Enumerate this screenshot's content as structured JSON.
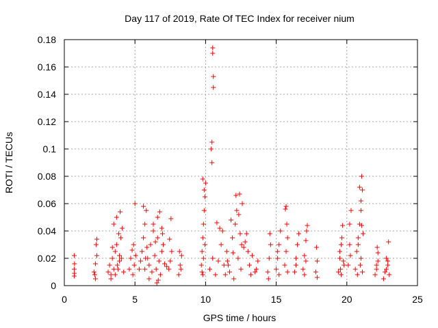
{
  "chart_data": {
    "type": "scatter",
    "title": "Day 117 of 2019, Rate Of TEC Index for receiver nium",
    "xlabel": "GPS time / hours",
    "ylabel": "ROTI / TECUs",
    "xlim": [
      0,
      25
    ],
    "ylim": [
      0,
      0.18
    ],
    "xticks": [
      0,
      5,
      10,
      15,
      20,
      25
    ],
    "xtick_labels": [
      "0",
      "5",
      "10",
      "15",
      "20",
      "25"
    ],
    "yticks": [
      0,
      0.02,
      0.04,
      0.06,
      0.08,
      0.1,
      0.12,
      0.14,
      0.16,
      0.18
    ],
    "ytick_labels": [
      "0",
      "0.02",
      "0.04",
      "0.06",
      "0.08",
      "0.1",
      "0.12",
      "0.14",
      "0.16",
      "0.18"
    ],
    "grid": true,
    "marker": "+",
    "marker_color": "#ff0000",
    "series": [
      {
        "name": "ROTI",
        "x": [
          0.7,
          0.7,
          0.72,
          0.7,
          0.71,
          2.1,
          2.2,
          2.3,
          2.25,
          2.15,
          2.3,
          2.2,
          3.1,
          3.2,
          3.3,
          3.4,
          3.5,
          3.6,
          3.7,
          3.5,
          3.8,
          3.9,
          4.0,
          4.1,
          3.6,
          3.7,
          3.9,
          4.2,
          3.95,
          3.85,
          3.75,
          4.05,
          3.3,
          3.4,
          4.6,
          4.7,
          4.8,
          4.9,
          5.0,
          4.95,
          4.85,
          5.05,
          5.3,
          5.4,
          5.5,
          5.6,
          5.7,
          5.8,
          5.9,
          6.0,
          6.1,
          6.2,
          6.3,
          6.4,
          6.5,
          6.6,
          6.7,
          6.8,
          6.9,
          7.0,
          7.1,
          5.6,
          5.7,
          6.0,
          6.3,
          6.6,
          6.9,
          6.65,
          6.55,
          6.75,
          5.75,
          5.85,
          6.45,
          6.95,
          7.25,
          7.4,
          7.5,
          7.6,
          7.45,
          7.55,
          8.1,
          8.2,
          8.3,
          8.15,
          8.25,
          9.7,
          9.75,
          9.8,
          9.85,
          9.9,
          9.95,
          10.0,
          9.8,
          9.9,
          9.75,
          9.85,
          9.95,
          9.8,
          10.5,
          10.5,
          10.55,
          10.55,
          10.45,
          10.4,
          10.45,
          10.3,
          10.5,
          10.7,
          10.9,
          11.1,
          11.3,
          11.5,
          11.7,
          11.9,
          12.1,
          12.3,
          12.5,
          12.7,
          12.9,
          13.1,
          13.3,
          13.5,
          13.7,
          11.2,
          11.8,
          12.2,
          12.6,
          12.0,
          11.4,
          11.6,
          12.4,
          12.8,
          13.0,
          11.0,
          10.8,
          12.15,
          12.35,
          12.55,
          11.95,
          12.45,
          11.55,
          13.2,
          13.6,
          14.4,
          14.5,
          14.6,
          14.55,
          14.45,
          15.0,
          15.1,
          15.2,
          15.3,
          15.2,
          15.1,
          15.6,
          15.7,
          15.8,
          15.75,
          15.65,
          15.7,
          15.8,
          16.3,
          16.4,
          16.5,
          16.6,
          16.4,
          16.9,
          17.0,
          17.1,
          17.2,
          17.0,
          17.1,
          17.15,
          17.8,
          17.9,
          17.85,
          17.9,
          19.4,
          19.5,
          19.6,
          19.7,
          19.8,
          19.5,
          19.6,
          19.55,
          19.65,
          19.75,
          20.1,
          20.2,
          20.3,
          20.2,
          20.25,
          20.6,
          20.7,
          20.8,
          20.9,
          21.0,
          21.1,
          20.9,
          21.0,
          21.05,
          20.95,
          21.0,
          21.05,
          21.1,
          20.8,
          21.15,
          20.75,
          22.0,
          22.1,
          22.2,
          22.15,
          22.1,
          22.2,
          22.6,
          22.7,
          22.8,
          22.9,
          22.95,
          23.0,
          22.8,
          22.9
        ],
        "y": [
          0.012,
          0.007,
          0.016,
          0.022,
          0.009,
          0.01,
          0.016,
          0.022,
          0.03,
          0.008,
          0.034,
          0.005,
          0.01,
          0.015,
          0.008,
          0.02,
          0.012,
          0.025,
          0.03,
          0.045,
          0.012,
          0.018,
          0.035,
          0.042,
          0.008,
          0.05,
          0.022,
          0.01,
          0.054,
          0.038,
          0.015,
          0.02,
          0.005,
          0.028,
          0.012,
          0.02,
          0.026,
          0.03,
          0.06,
          0.015,
          0.008,
          0.022,
          0.012,
          0.018,
          0.025,
          0.035,
          0.045,
          0.055,
          0.02,
          0.015,
          0.03,
          0.01,
          0.04,
          0.022,
          0.012,
          0.05,
          0.018,
          0.008,
          0.025,
          0.03,
          0.016,
          0.058,
          0.012,
          0.005,
          0.045,
          0.035,
          0.042,
          0.004,
          0.002,
          0.054,
          0.02,
          0.028,
          0.032,
          0.038,
          0.014,
          0.012,
          0.018,
          0.025,
          0.034,
          0.049,
          0.008,
          0.015,
          0.022,
          0.025,
          0.012,
          0.015,
          0.025,
          0.035,
          0.045,
          0.055,
          0.065,
          0.075,
          0.078,
          0.07,
          0.01,
          0.02,
          0.03,
          0.008,
          0.174,
          0.17,
          0.153,
          0.145,
          0.105,
          0.1,
          0.09,
          0.012,
          0.02,
          0.008,
          0.018,
          0.03,
          0.015,
          0.025,
          0.01,
          0.035,
          0.045,
          0.02,
          0.012,
          0.028,
          0.038,
          0.015,
          0.022,
          0.01,
          0.018,
          0.04,
          0.048,
          0.055,
          0.06,
          0.005,
          0.008,
          0.015,
          0.067,
          0.032,
          0.025,
          0.042,
          0.046,
          0.066,
          0.052,
          0.03,
          0.024,
          0.038,
          0.018,
          0.008,
          0.012,
          0.01,
          0.02,
          0.03,
          0.038,
          0.005,
          0.012,
          0.02,
          0.03,
          0.04,
          0.008,
          0.025,
          0.015,
          0.025,
          0.035,
          0.045,
          0.056,
          0.058,
          0.01,
          0.01,
          0.02,
          0.03,
          0.038,
          0.015,
          0.012,
          0.022,
          0.033,
          0.044,
          0.008,
          0.018,
          0.04,
          0.01,
          0.018,
          0.028,
          0.006,
          0.01,
          0.02,
          0.03,
          0.044,
          0.015,
          0.025,
          0.008,
          0.012,
          0.035,
          0.018,
          0.015,
          0.03,
          0.055,
          0.045,
          0.022,
          0.012,
          0.025,
          0.035,
          0.045,
          0.055,
          0.07,
          0.072,
          0.062,
          0.08,
          0.015,
          0.02,
          0.044,
          0.01,
          0.03,
          0.038,
          0.008,
          0.008,
          0.015,
          0.024,
          0.028,
          0.012,
          0.018,
          0.005,
          0.01,
          0.02,
          0.015,
          0.032,
          0.008,
          0.012,
          0.018
        ]
      }
    ]
  }
}
